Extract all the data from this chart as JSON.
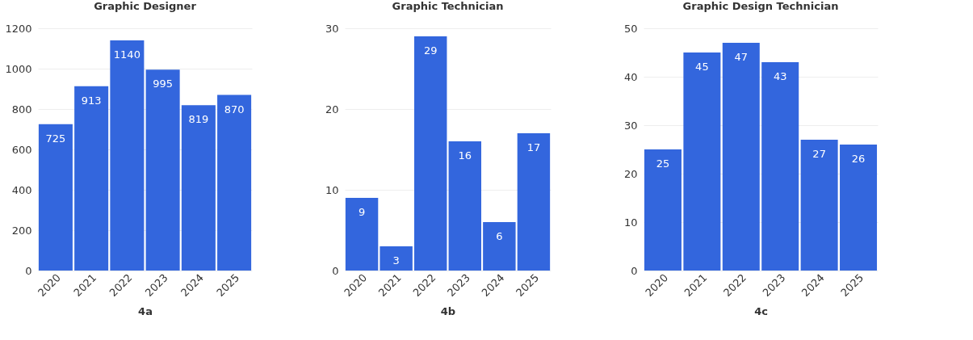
{
  "chart_data": [
    {
      "type": "bar",
      "title": "Graphic Designer",
      "xlabel": "4a",
      "categories": [
        "2020",
        "2021",
        "2022",
        "2023",
        "2024",
        "2025"
      ],
      "values": [
        725,
        913,
        1140,
        995,
        819,
        870
      ],
      "color": "#3366dd",
      "ylim": [
        0,
        1200
      ],
      "yticks": [
        0,
        200,
        400,
        600,
        800,
        1000,
        1200
      ],
      "grid": "y",
      "data_labels": true
    },
    {
      "type": "bar",
      "title": "Graphic Technician",
      "xlabel": "4b",
      "categories": [
        "2020",
        "2021",
        "2022",
        "2023",
        "2024",
        "2025"
      ],
      "values": [
        9,
        3,
        29,
        16,
        6,
        17
      ],
      "color": "#3366dd",
      "ylim": [
        0,
        30
      ],
      "yticks": [
        0,
        10,
        20,
        30
      ],
      "grid": "y",
      "data_labels": true
    },
    {
      "type": "bar",
      "title": "Graphic Design Technician",
      "xlabel": "4c",
      "categories": [
        "2020",
        "2021",
        "2022",
        "2023",
        "2024",
        "2025"
      ],
      "values": [
        25,
        45,
        47,
        43,
        27,
        26
      ],
      "color": "#3366dd",
      "ylim": [
        0,
        50
      ],
      "yticks": [
        0,
        10,
        20,
        30,
        40,
        50
      ],
      "grid": "y",
      "data_labels": true
    }
  ]
}
